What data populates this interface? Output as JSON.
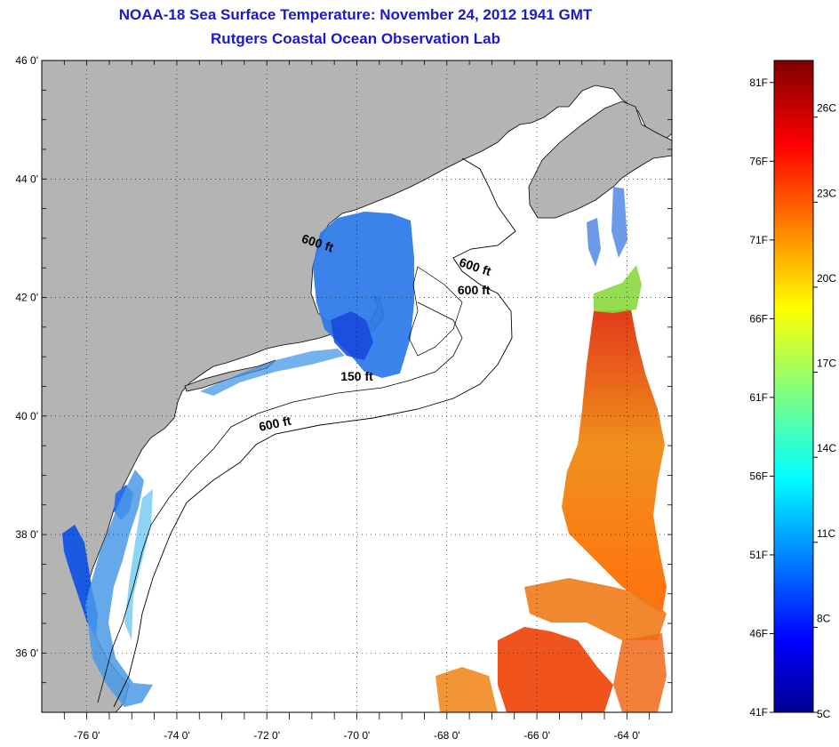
{
  "title": "NOAA-18 Sea Surface Temperature:  November 24, 2012 1941 GMT",
  "subtitle": "Rutgers Coastal Ocean Observation Lab",
  "map": {
    "lat_ticks": [
      "46 0'",
      "44 0'",
      "42 0'",
      "40 0'",
      "38 0'",
      "36 0'"
    ],
    "lat_values": [
      46,
      44,
      42,
      40,
      38,
      36
    ],
    "lon_ticks": [
      "-76 0'",
      "-74 0'",
      "-72 0'",
      "-70 0'",
      "-68 0'",
      "-66 0'",
      "-64 0'"
    ],
    "lon_values": [
      -76,
      -74,
      -72,
      -70,
      -68,
      -66,
      -64
    ],
    "lat_range": [
      35,
      46
    ],
    "lon_range": [
      -77,
      -63
    ],
    "depth_labels": [
      {
        "text": "600 ft",
        "lon": -70.9,
        "lat": 42.85
      },
      {
        "text": "600 ft",
        "lon": -67.4,
        "lat": 42.45
      },
      {
        "text": "600 ft",
        "lon": -67.4,
        "lat": 42.05
      },
      {
        "text": "150 ft",
        "lon": -70.0,
        "lat": 40.6
      },
      {
        "text": "600 ft",
        "lon": -71.8,
        "lat": 39.8
      }
    ],
    "land_color": "#b4b4b4",
    "grid": "dotted"
  },
  "colorbar": {
    "fahrenheit": [
      "81F",
      "76F",
      "71F",
      "66F",
      "61F",
      "56F",
      "51F",
      "46F",
      "41F"
    ],
    "fahrenheit_values": [
      81,
      76,
      71,
      66,
      61,
      56,
      51,
      46,
      41
    ],
    "celsius": [
      "26C",
      "23C",
      "20C",
      "17C",
      "14C",
      "11C",
      "8C",
      "5C"
    ],
    "celsius_values": [
      26,
      23,
      20,
      17,
      14,
      11,
      8,
      5
    ],
    "range_F": [
      41,
      82.4
    ],
    "colormap": "jet"
  }
}
